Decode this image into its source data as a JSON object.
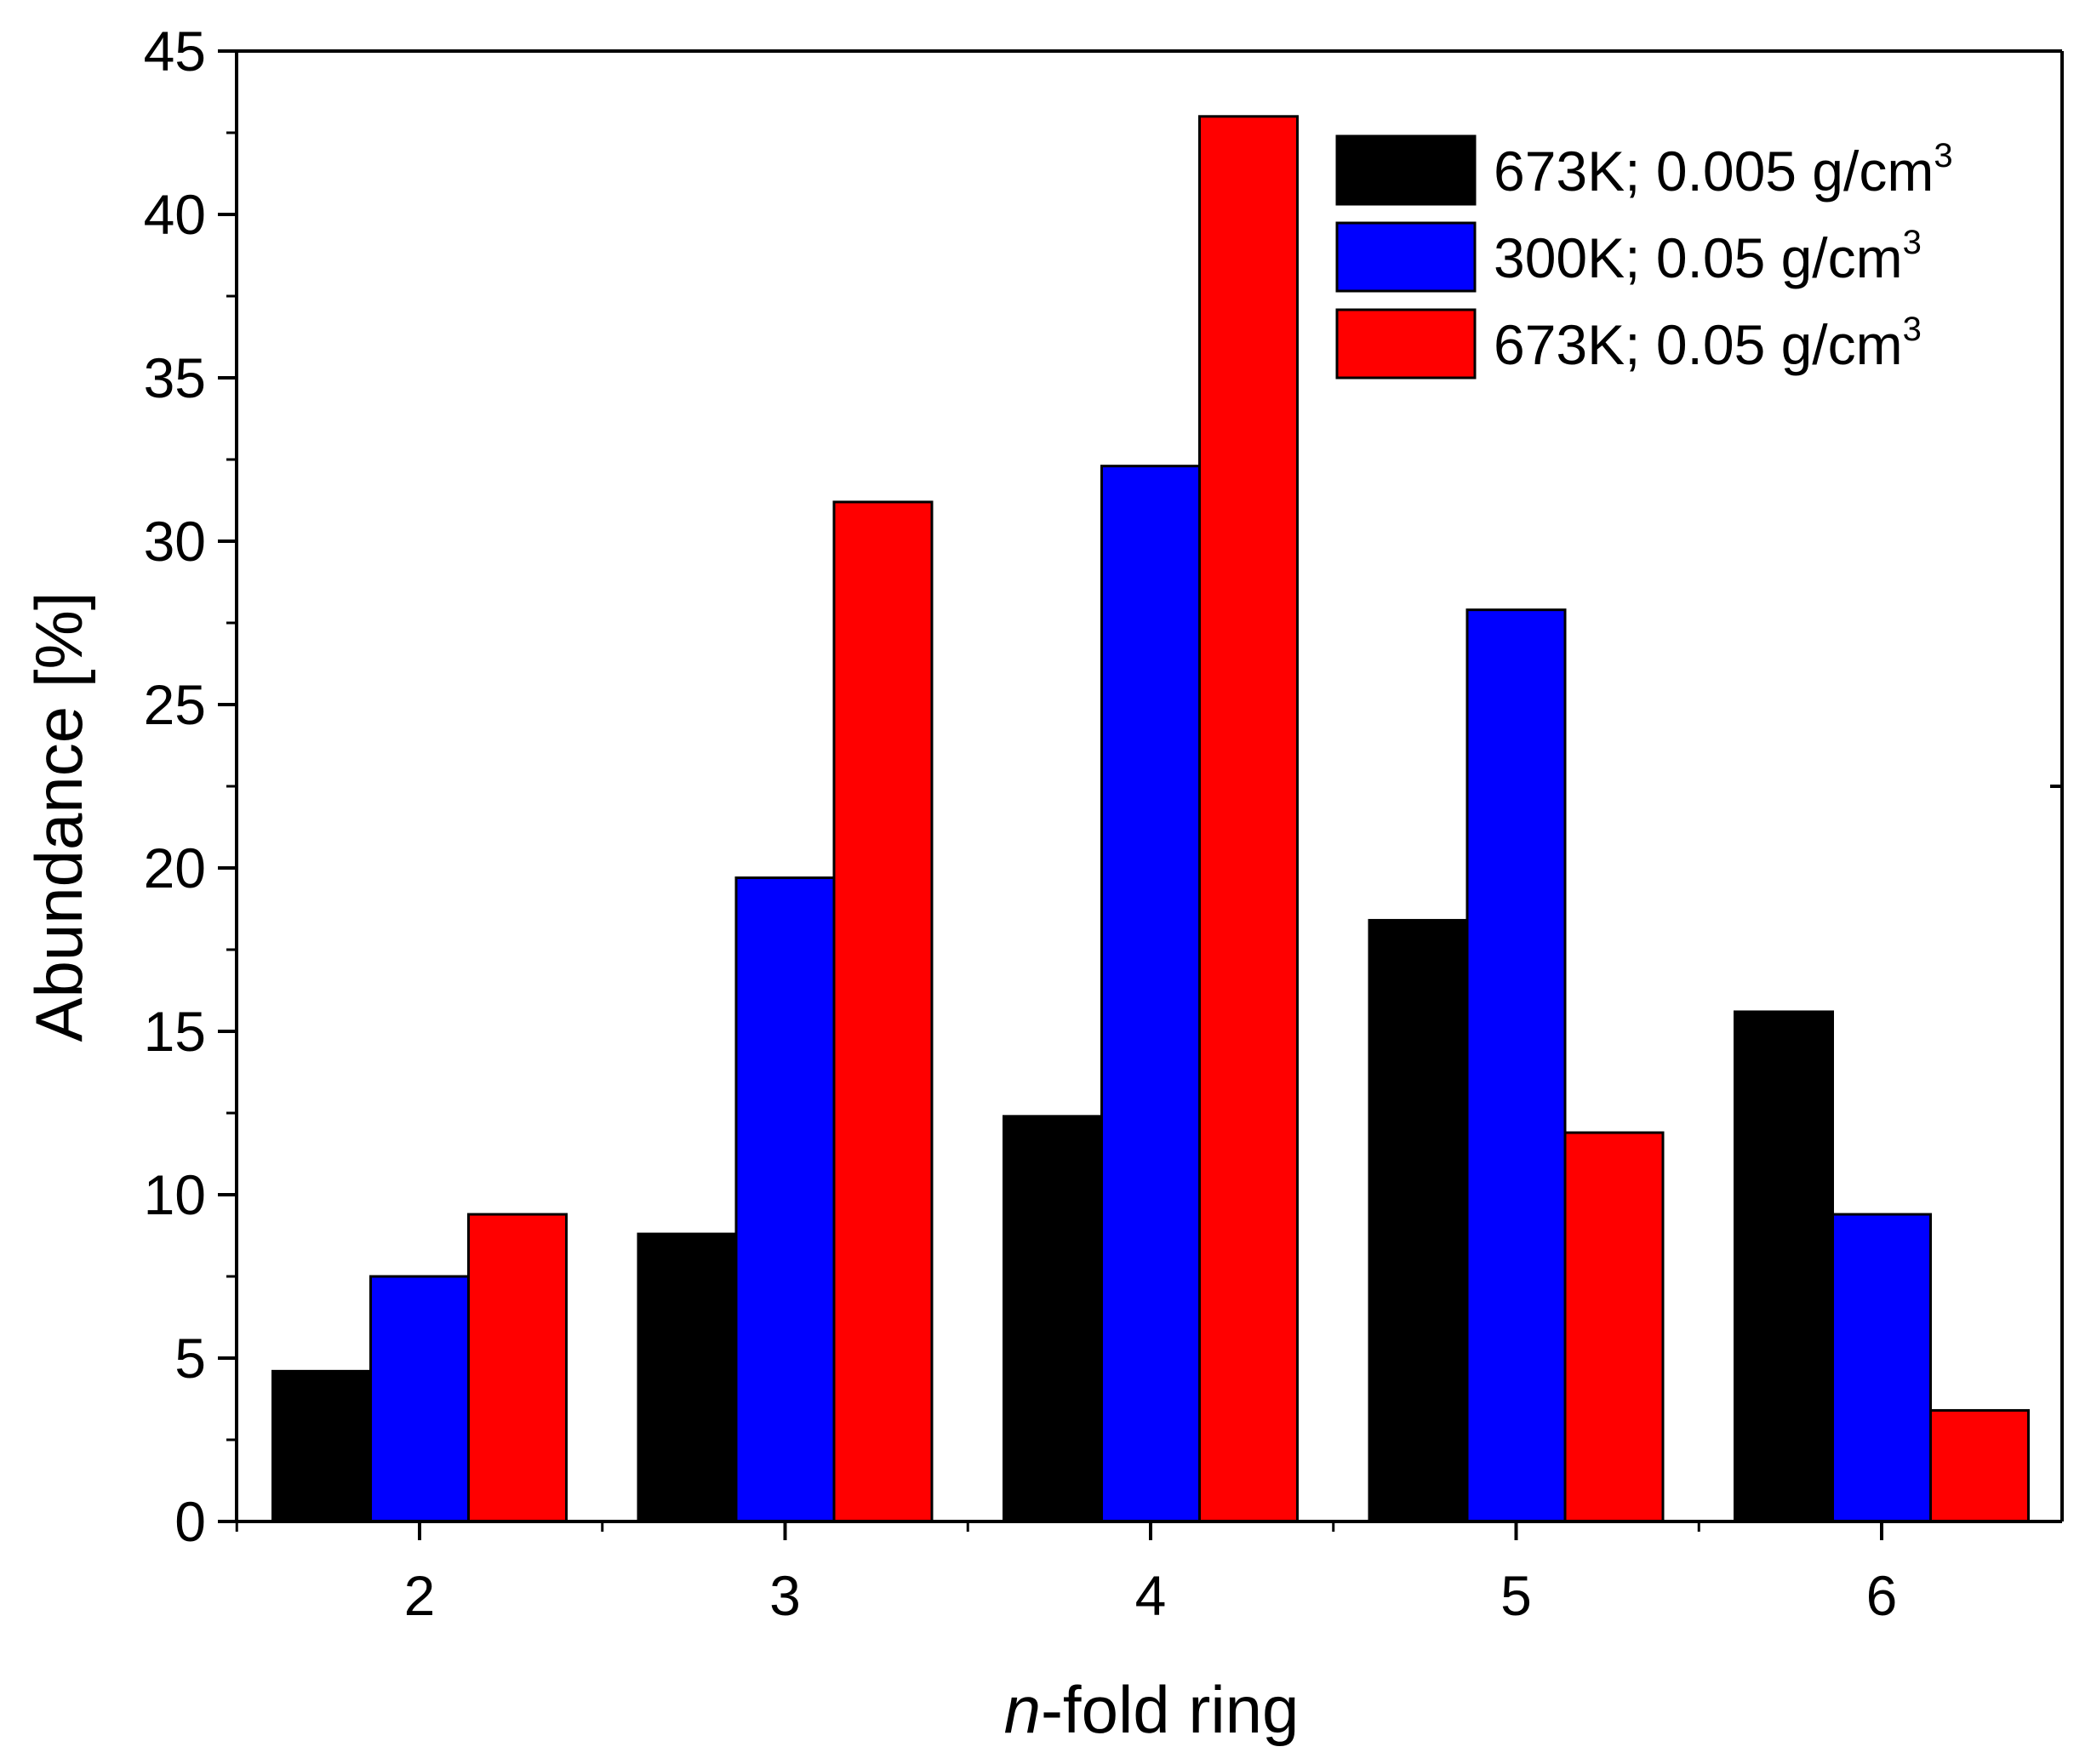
{
  "chart_data": {
    "type": "bar",
    "title": "",
    "xlabel_italic": "n",
    "xlabel_rest": "-fold ring",
    "ylabel": "Abundance [%]",
    "categories": [
      "2",
      "3",
      "4",
      "5",
      "6"
    ],
    "ylim": [
      0,
      45
    ],
    "yticks": [
      0,
      5,
      10,
      15,
      20,
      25,
      30,
      35,
      40,
      45
    ],
    "grid": false,
    "legend_position": "top-right",
    "series": [
      {
        "name": "673K; 0.005 g/cm",
        "superscript": "3",
        "color": "#000000",
        "values": [
          4.6,
          8.8,
          12.4,
          18.4,
          15.6
        ]
      },
      {
        "name": "300K; 0.05 g/cm",
        "superscript": "3",
        "color": "#0000ff",
        "values": [
          7.5,
          19.7,
          32.3,
          27.9,
          9.4
        ]
      },
      {
        "name": "673K; 0.05 g/cm",
        "superscript": "3",
        "color": "#ff0000",
        "values": [
          9.4,
          31.2,
          43.0,
          11.9,
          3.4
        ]
      }
    ]
  }
}
